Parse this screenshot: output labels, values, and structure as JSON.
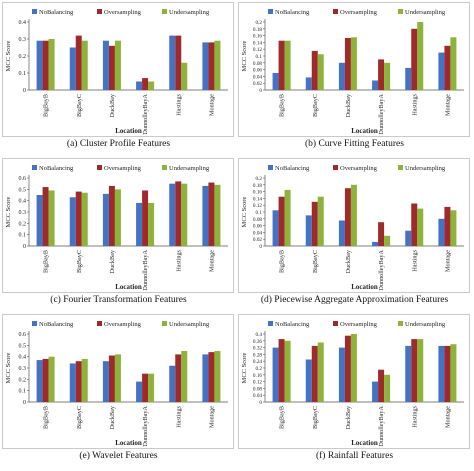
{
  "colors": {
    "NoBalancing": "#4472c4",
    "Oversampling": "#9e2a2b",
    "Undersampling": "#8db33a"
  },
  "chart_data": [
    {
      "type": "bar",
      "caption": "(a) Cluster Profile Features",
      "xlabel": "Location",
      "ylabel": "MCC Score",
      "ylim": [
        0,
        0.4
      ],
      "yticks": [
        "0",
        "0.1",
        "0.2",
        "0.3",
        "0.4"
      ],
      "ytick_values": [
        0,
        0.1,
        0.2,
        0.3,
        0.4
      ],
      "categories": [
        "BigBayB",
        "BigBayC",
        "DuckBay",
        "DunnolleyBayA",
        "Hastings",
        "Montage"
      ],
      "legend": "top",
      "grid": false,
      "series": [
        {
          "name": "NoBalancing",
          "values": [
            0.29,
            0.25,
            0.29,
            0.05,
            0.32,
            0.28
          ]
        },
        {
          "name": "Oversampling",
          "values": [
            0.29,
            0.32,
            0.26,
            0.07,
            0.32,
            0.28
          ]
        },
        {
          "name": "Undersampling",
          "values": [
            0.3,
            0.29,
            0.29,
            0.05,
            0.16,
            0.29
          ]
        }
      ]
    },
    {
      "type": "bar",
      "caption": "(b) Curve Fitting Features",
      "xlabel": "Location",
      "ylabel": "MCC Score",
      "ylim": [
        0,
        0.2
      ],
      "yticks": [
        "0",
        "0.02",
        "0.04",
        "0.06",
        "0.08",
        "0.1",
        "0.12",
        "0.14",
        "0.16",
        "0.18",
        "0.2"
      ],
      "ytick_values": [
        0,
        0.02,
        0.04,
        0.06,
        0.08,
        0.1,
        0.12,
        0.14,
        0.16,
        0.18,
        0.2
      ],
      "categories": [
        "BigBayB",
        "BigBayC",
        "DuckBay",
        "DunnolleyBayA",
        "Hastings",
        "Montage"
      ],
      "legend": "top",
      "grid": false,
      "series": [
        {
          "name": "NoBalancing",
          "values": [
            0.05,
            0.037,
            0.08,
            0.028,
            0.065,
            0.11
          ]
        },
        {
          "name": "Oversampling",
          "values": [
            0.145,
            0.115,
            0.153,
            0.09,
            0.18,
            0.13
          ]
        },
        {
          "name": "Undersampling",
          "values": [
            0.145,
            0.105,
            0.155,
            0.08,
            0.2,
            0.155
          ]
        }
      ]
    },
    {
      "type": "bar",
      "caption": "(c) Fourier Transformation Features",
      "xlabel": "Location",
      "ylabel": "MCC Score",
      "ylim": [
        0,
        0.6
      ],
      "yticks": [
        "0",
        "0.1",
        "0.2",
        "0.3",
        "0.4",
        "0.5",
        "0.6"
      ],
      "ytick_values": [
        0,
        0.1,
        0.2,
        0.3,
        0.4,
        0.5,
        0.6
      ],
      "categories": [
        "BigBayB",
        "BigBayC",
        "DuckBay",
        "DunnolleyBayA",
        "Hastings",
        "Montage"
      ],
      "legend": "top",
      "grid": false,
      "series": [
        {
          "name": "NoBalancing",
          "values": [
            0.45,
            0.43,
            0.46,
            0.38,
            0.55,
            0.53
          ]
        },
        {
          "name": "Oversampling",
          "values": [
            0.52,
            0.48,
            0.53,
            0.49,
            0.57,
            0.56
          ]
        },
        {
          "name": "Undersampling",
          "values": [
            0.49,
            0.47,
            0.5,
            0.38,
            0.55,
            0.54
          ]
        }
      ]
    },
    {
      "type": "bar",
      "caption": "(d) Piecewise Aggregate Approximation Features",
      "xlabel": "Location",
      "ylabel": "MCC Score",
      "ylim": [
        0,
        0.2
      ],
      "yticks": [
        "0",
        "0.02",
        "0.04",
        "0.06",
        "0.08",
        "0.1",
        "0.12",
        "0.14",
        "0.16",
        "0.18",
        "0.2"
      ],
      "ytick_values": [
        0,
        0.02,
        0.04,
        0.06,
        0.08,
        0.1,
        0.12,
        0.14,
        0.16,
        0.18,
        0.2
      ],
      "categories": [
        "BigBayB",
        "BigBayC",
        "DuckBay",
        "DunnolleyBayA",
        "Hastings",
        "Montage"
      ],
      "legend": "top",
      "grid": false,
      "series": [
        {
          "name": "NoBalancing",
          "values": [
            0.105,
            0.09,
            0.075,
            0.012,
            0.045,
            0.08
          ]
        },
        {
          "name": "Oversampling",
          "values": [
            0.145,
            0.13,
            0.17,
            0.07,
            0.125,
            0.115
          ]
        },
        {
          "name": "Undersampling",
          "values": [
            0.165,
            0.145,
            0.18,
            0.03,
            0.11,
            0.105
          ]
        }
      ]
    },
    {
      "type": "bar",
      "caption": "(e) Wavelet Features",
      "xlabel": "Location",
      "ylabel": "MCC Score",
      "ylim": [
        0,
        0.6
      ],
      "yticks": [
        "0",
        "0.1",
        "0.2",
        "0.3",
        "0.4",
        "0.5",
        "0.6"
      ],
      "ytick_values": [
        0,
        0.1,
        0.2,
        0.3,
        0.4,
        0.5,
        0.6
      ],
      "categories": [
        "BigBayB",
        "BigBayC",
        "DuckBay",
        "DunnolleyBayA",
        "Hastings",
        "Montage"
      ],
      "legend": "top",
      "grid": false,
      "series": [
        {
          "name": "NoBalancing",
          "values": [
            0.37,
            0.34,
            0.36,
            0.18,
            0.32,
            0.42
          ]
        },
        {
          "name": "Oversampling",
          "values": [
            0.38,
            0.36,
            0.41,
            0.25,
            0.42,
            0.44
          ]
        },
        {
          "name": "Undersampling",
          "values": [
            0.4,
            0.38,
            0.42,
            0.25,
            0.45,
            0.45
          ]
        }
      ]
    },
    {
      "type": "bar",
      "caption": "(f) Rainfall Features",
      "xlabel": "Location",
      "ylabel": "MCC Score",
      "ylim": [
        0,
        0.4
      ],
      "yticks": [
        "0",
        "0.04",
        "0.08",
        "0.12",
        "0.16",
        "0.2",
        "0.24",
        "0.28",
        "0.32",
        "0.36",
        "0.4"
      ],
      "ytick_values": [
        0,
        0.04,
        0.08,
        0.12,
        0.16,
        0.2,
        0.24,
        0.28,
        0.32,
        0.36,
        0.4
      ],
      "categories": [
        "BigBayB",
        "BigBayC",
        "DuckBay",
        "DunnolleyBayA",
        "Hastings",
        "Montage"
      ],
      "legend": "top",
      "grid": false,
      "series": [
        {
          "name": "NoBalancing",
          "values": [
            0.32,
            0.25,
            0.32,
            0.12,
            0.33,
            0.33
          ]
        },
        {
          "name": "Oversampling",
          "values": [
            0.37,
            0.33,
            0.39,
            0.19,
            0.37,
            0.33
          ]
        },
        {
          "name": "Undersampling",
          "values": [
            0.36,
            0.35,
            0.4,
            0.16,
            0.37,
            0.34
          ]
        }
      ]
    }
  ]
}
